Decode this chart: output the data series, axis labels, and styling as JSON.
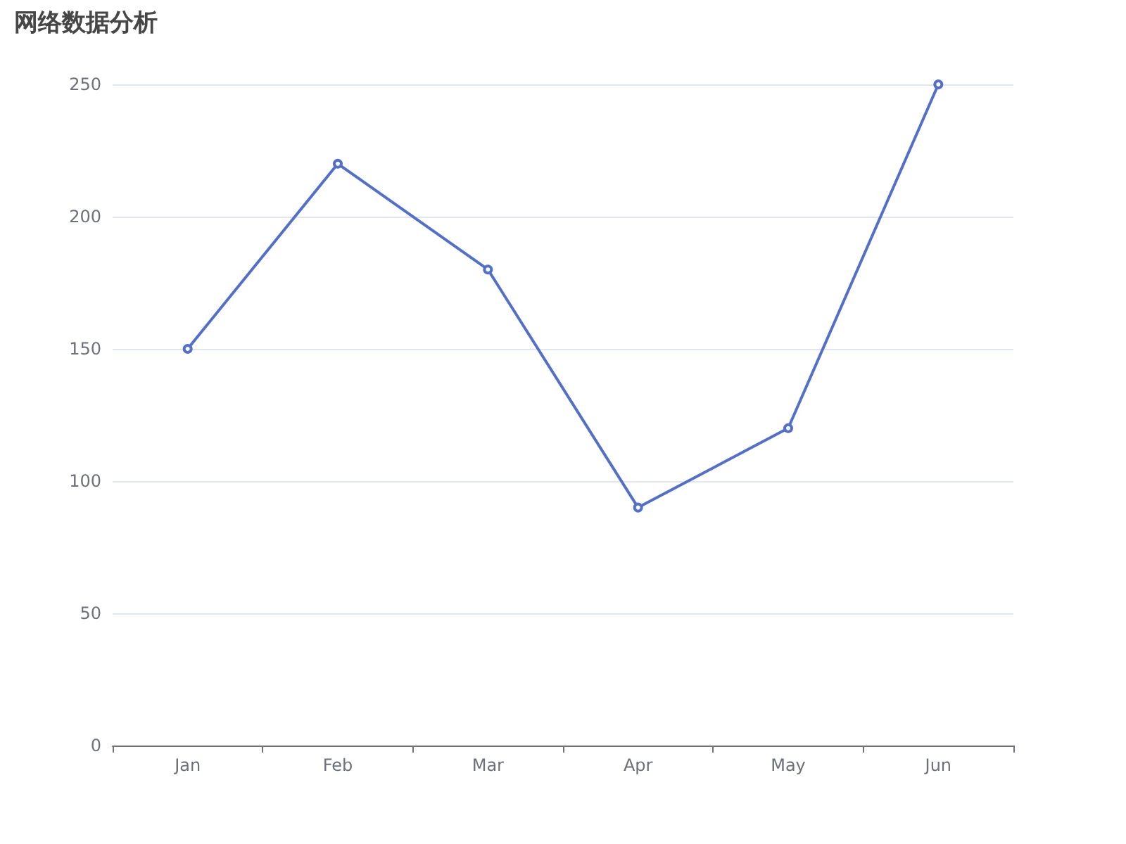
{
  "chart_data": {
    "type": "line",
    "title": "网络数据分析",
    "categories": [
      "Jan",
      "Feb",
      "Mar",
      "Apr",
      "May",
      "Jun"
    ],
    "series": [
      {
        "color": "#5470c6",
        "values": [
          150,
          220,
          180,
          90,
          120,
          250
        ]
      }
    ],
    "ylim": [
      0,
      250
    ],
    "yticks": [
      0,
      50,
      100,
      150,
      200,
      250
    ],
    "grid": "y",
    "marker": "circle",
    "line_style": "solid"
  }
}
